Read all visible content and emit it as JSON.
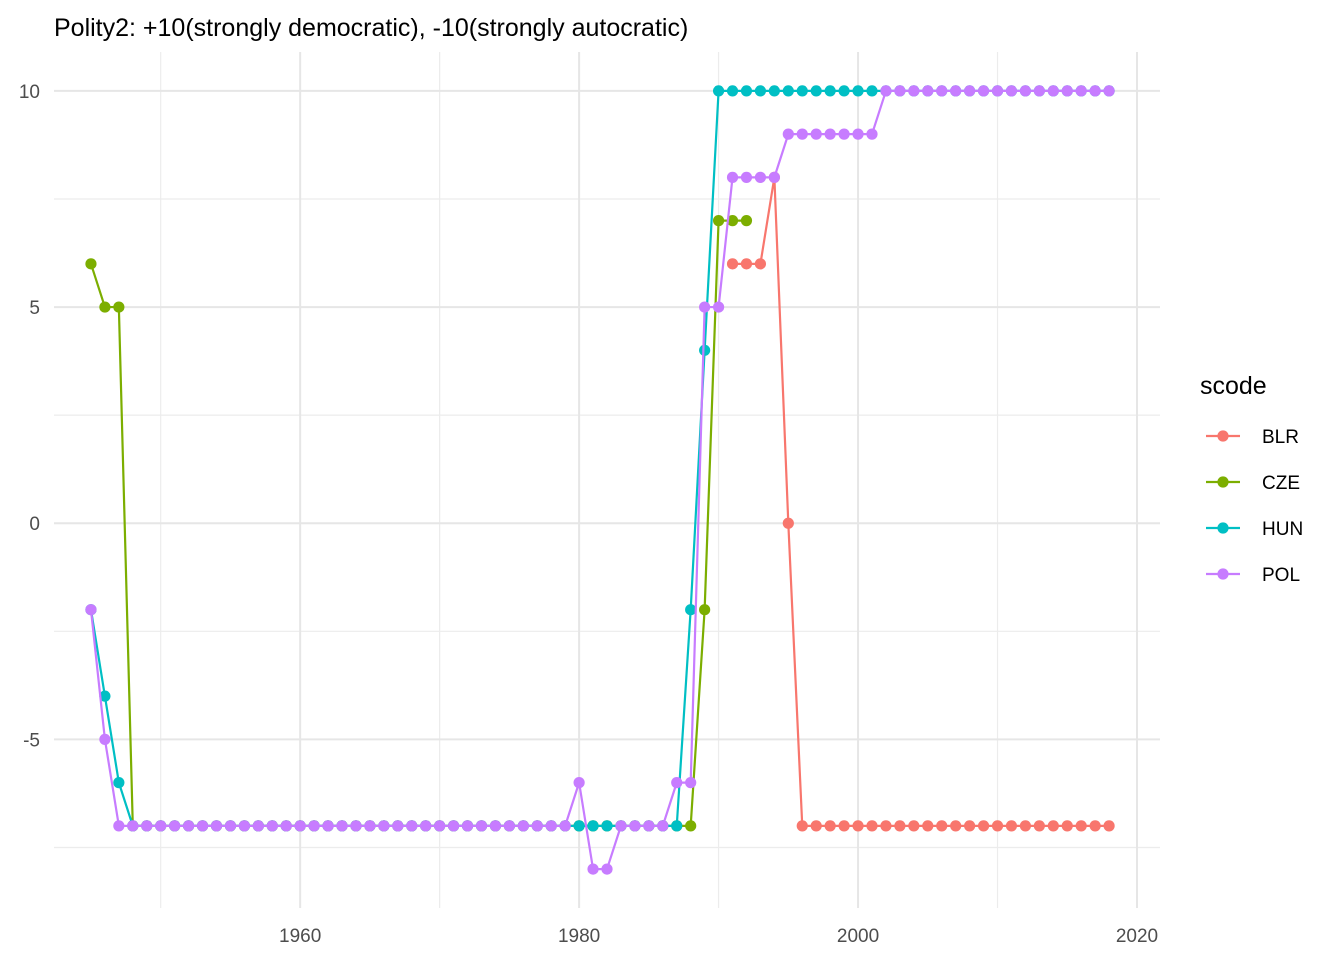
{
  "chart_data": {
    "type": "line",
    "title": "Polity2: +10(strongly democratic), -10(strongly autocratic)",
    "xlabel": "",
    "ylabel": "",
    "xlim": [
      1942.35,
      2021.65
    ],
    "ylim": [
      -8.9,
      10.9
    ],
    "x_ticks": [
      1960,
      1980,
      2000,
      2020
    ],
    "y_ticks": [
      -5,
      0,
      5,
      10
    ],
    "x_minor": [
      1950,
      1970,
      1990,
      2010
    ],
    "y_minor": [
      -7.5,
      -2.5,
      2.5,
      7.5
    ],
    "grid": true,
    "legend": {
      "title": "scode",
      "position": "right"
    },
    "series": [
      {
        "name": "BLR",
        "color": "#F8766D",
        "segments": [
          [
            [
              1991,
              6
            ],
            [
              1992,
              6
            ],
            [
              1993,
              6
            ],
            [
              1994,
              8
            ],
            [
              1995,
              0
            ],
            [
              1996,
              -7
            ],
            [
              1997,
              -7
            ],
            [
              1998,
              -7
            ],
            [
              1999,
              -7
            ],
            [
              2000,
              -7
            ],
            [
              2001,
              -7
            ],
            [
              2002,
              -7
            ],
            [
              2003,
              -7
            ],
            [
              2004,
              -7
            ],
            [
              2005,
              -7
            ],
            [
              2006,
              -7
            ],
            [
              2007,
              -7
            ],
            [
              2008,
              -7
            ],
            [
              2009,
              -7
            ],
            [
              2010,
              -7
            ],
            [
              2011,
              -7
            ],
            [
              2012,
              -7
            ],
            [
              2013,
              -7
            ],
            [
              2014,
              -7
            ],
            [
              2015,
              -7
            ],
            [
              2016,
              -7
            ],
            [
              2017,
              -7
            ],
            [
              2018,
              -7
            ]
          ]
        ]
      },
      {
        "name": "CZE",
        "color": "#7CAE00",
        "segments": [
          [
            [
              1945,
              6
            ],
            [
              1946,
              5
            ],
            [
              1947,
              5
            ],
            [
              1948,
              -7
            ],
            [
              1949,
              -7
            ],
            [
              1950,
              -7
            ],
            [
              1951,
              -7
            ],
            [
              1952,
              -7
            ],
            [
              1953,
              -7
            ],
            [
              1954,
              -7
            ],
            [
              1955,
              -7
            ],
            [
              1956,
              -7
            ],
            [
              1957,
              -7
            ],
            [
              1958,
              -7
            ],
            [
              1959,
              -7
            ],
            [
              1960,
              -7
            ],
            [
              1961,
              -7
            ],
            [
              1962,
              -7
            ],
            [
              1963,
              -7
            ],
            [
              1964,
              -7
            ],
            [
              1965,
              -7
            ],
            [
              1966,
              -7
            ],
            [
              1967,
              -7
            ],
            [
              1968,
              -7
            ],
            [
              1969,
              -7
            ],
            [
              1970,
              -7
            ],
            [
              1971,
              -7
            ],
            [
              1972,
              -7
            ],
            [
              1973,
              -7
            ],
            [
              1974,
              -7
            ],
            [
              1975,
              -7
            ],
            [
              1976,
              -7
            ],
            [
              1977,
              -7
            ],
            [
              1978,
              -7
            ],
            [
              1979,
              -7
            ],
            [
              1980,
              -7
            ],
            [
              1981,
              -7
            ],
            [
              1982,
              -7
            ],
            [
              1983,
              -7
            ],
            [
              1984,
              -7
            ],
            [
              1985,
              -7
            ],
            [
              1986,
              -7
            ],
            [
              1987,
              -7
            ],
            [
              1988,
              -7
            ],
            [
              1989,
              -2
            ],
            [
              1990,
              7
            ],
            [
              1991,
              7
            ],
            [
              1992,
              7
            ]
          ]
        ]
      },
      {
        "name": "HUN",
        "color": "#00BFC4",
        "segments": [
          [
            [
              1945,
              -2
            ],
            [
              1946,
              -4
            ],
            [
              1947,
              -6
            ],
            [
              1948,
              -7
            ],
            [
              1949,
              -7
            ],
            [
              1950,
              -7
            ],
            [
              1951,
              -7
            ],
            [
              1952,
              -7
            ],
            [
              1953,
              -7
            ],
            [
              1954,
              -7
            ],
            [
              1955,
              -7
            ],
            [
              1956,
              -7
            ],
            [
              1957,
              -7
            ],
            [
              1958,
              -7
            ],
            [
              1959,
              -7
            ],
            [
              1960,
              -7
            ],
            [
              1961,
              -7
            ],
            [
              1962,
              -7
            ],
            [
              1963,
              -7
            ],
            [
              1964,
              -7
            ],
            [
              1965,
              -7
            ],
            [
              1966,
              -7
            ],
            [
              1967,
              -7
            ],
            [
              1968,
              -7
            ],
            [
              1969,
              -7
            ],
            [
              1970,
              -7
            ],
            [
              1971,
              -7
            ],
            [
              1972,
              -7
            ],
            [
              1973,
              -7
            ],
            [
              1974,
              -7
            ],
            [
              1975,
              -7
            ],
            [
              1976,
              -7
            ],
            [
              1977,
              -7
            ],
            [
              1978,
              -7
            ],
            [
              1979,
              -7
            ],
            [
              1980,
              -7
            ],
            [
              1981,
              -7
            ],
            [
              1982,
              -7
            ],
            [
              1983,
              -7
            ],
            [
              1984,
              -7
            ],
            [
              1985,
              -7
            ],
            [
              1986,
              -7
            ],
            [
              1987,
              -7
            ],
            [
              1988,
              -2
            ],
            [
              1989,
              4
            ],
            [
              1990,
              10
            ],
            [
              1991,
              10
            ],
            [
              1992,
              10
            ],
            [
              1993,
              10
            ],
            [
              1994,
              10
            ],
            [
              1995,
              10
            ],
            [
              1996,
              10
            ],
            [
              1997,
              10
            ],
            [
              1998,
              10
            ],
            [
              1999,
              10
            ],
            [
              2000,
              10
            ],
            [
              2001,
              10
            ],
            [
              2002,
              10
            ],
            [
              2003,
              10
            ],
            [
              2004,
              10
            ],
            [
              2005,
              10
            ],
            [
              2006,
              10
            ],
            [
              2007,
              10
            ],
            [
              2008,
              10
            ],
            [
              2009,
              10
            ],
            [
              2010,
              10
            ],
            [
              2011,
              10
            ],
            [
              2012,
              10
            ],
            [
              2013,
              10
            ],
            [
              2014,
              10
            ],
            [
              2015,
              10
            ],
            [
              2016,
              10
            ],
            [
              2017,
              10
            ],
            [
              2018,
              10
            ]
          ]
        ]
      },
      {
        "name": "POL",
        "color": "#C77CFF",
        "segments": [
          [
            [
              1945,
              -2
            ],
            [
              1946,
              -5
            ],
            [
              1947,
              -7
            ],
            [
              1948,
              -7
            ],
            [
              1949,
              -7
            ],
            [
              1950,
              -7
            ],
            [
              1951,
              -7
            ],
            [
              1952,
              -7
            ],
            [
              1953,
              -7
            ],
            [
              1954,
              -7
            ],
            [
              1955,
              -7
            ],
            [
              1956,
              -7
            ],
            [
              1957,
              -7
            ],
            [
              1958,
              -7
            ],
            [
              1959,
              -7
            ],
            [
              1960,
              -7
            ],
            [
              1961,
              -7
            ],
            [
              1962,
              -7
            ],
            [
              1963,
              -7
            ],
            [
              1964,
              -7
            ],
            [
              1965,
              -7
            ],
            [
              1966,
              -7
            ],
            [
              1967,
              -7
            ],
            [
              1968,
              -7
            ],
            [
              1969,
              -7
            ],
            [
              1970,
              -7
            ],
            [
              1971,
              -7
            ],
            [
              1972,
              -7
            ],
            [
              1973,
              -7
            ],
            [
              1974,
              -7
            ],
            [
              1975,
              -7
            ],
            [
              1976,
              -7
            ],
            [
              1977,
              -7
            ],
            [
              1978,
              -7
            ],
            [
              1979,
              -7
            ],
            [
              1980,
              -6
            ],
            [
              1981,
              -8
            ],
            [
              1982,
              -8
            ],
            [
              1983,
              -7
            ],
            [
              1984,
              -7
            ],
            [
              1985,
              -7
            ],
            [
              1986,
              -7
            ],
            [
              1987,
              -6
            ],
            [
              1988,
              -6
            ],
            [
              1989,
              5
            ],
            [
              1990,
              5
            ],
            [
              1991,
              8
            ],
            [
              1992,
              8
            ],
            [
              1993,
              8
            ],
            [
              1994,
              8
            ],
            [
              1995,
              9
            ],
            [
              1996,
              9
            ],
            [
              1997,
              9
            ],
            [
              1998,
              9
            ],
            [
              1999,
              9
            ],
            [
              2000,
              9
            ],
            [
              2001,
              9
            ],
            [
              2002,
              10
            ],
            [
              2003,
              10
            ],
            [
              2004,
              10
            ],
            [
              2005,
              10
            ],
            [
              2006,
              10
            ],
            [
              2007,
              10
            ],
            [
              2008,
              10
            ],
            [
              2009,
              10
            ],
            [
              2010,
              10
            ],
            [
              2011,
              10
            ],
            [
              2012,
              10
            ],
            [
              2013,
              10
            ],
            [
              2014,
              10
            ],
            [
              2015,
              10
            ],
            [
              2016,
              10
            ],
            [
              2017,
              10
            ],
            [
              2018,
              10
            ]
          ]
        ]
      }
    ]
  }
}
